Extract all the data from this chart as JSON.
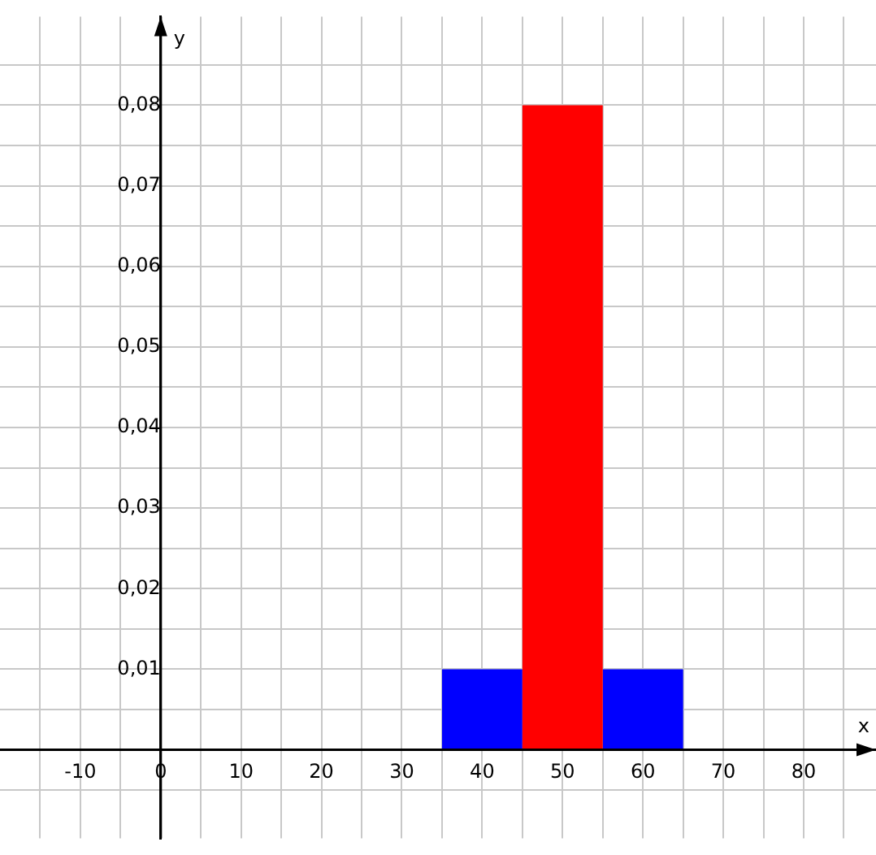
{
  "chart_data": {
    "type": "histogram",
    "xlabel": "x",
    "ylabel": "y",
    "bins": [
      35,
      45,
      55,
      65
    ],
    "series": [
      {
        "color": "#0000ff",
        "values": [
          0.01,
          null,
          0.01
        ]
      },
      {
        "color": "#ff0000",
        "values": [
          null,
          0.08,
          null
        ]
      }
    ],
    "xlim": [
      -20,
      89
    ],
    "ylim": [
      -0.011,
      0.091
    ],
    "xticks": [
      {
        "value": -15,
        "label": null
      },
      {
        "value": -10,
        "label": "-10"
      },
      {
        "value": -5,
        "label": null
      },
      {
        "value": 0,
        "label": "0"
      },
      {
        "value": 5,
        "label": null
      },
      10,
      {
        "value": 15,
        "label": null
      },
      20,
      {
        "value": 25,
        "label": null
      },
      30,
      {
        "value": 35,
        "label": null
      },
      40,
      {
        "value": 45,
        "label": null
      },
      50,
      {
        "value": 55,
        "label": null
      },
      60,
      {
        "value": 65,
        "label": null
      },
      70,
      {
        "value": 75,
        "label": null
      },
      80,
      {
        "value": 85,
        "label": null
      }
    ],
    "yticks": [
      {
        "value": -0.005,
        "label": null
      },
      {
        "value": 0.005,
        "label": null
      },
      {
        "value": 0.01,
        "label": "0,01"
      },
      {
        "value": 0.015,
        "label": null
      },
      {
        "value": 0.02,
        "label": "0,02"
      },
      {
        "value": 0.025,
        "label": null
      },
      {
        "value": 0.03,
        "label": "0,03"
      },
      {
        "value": 0.035,
        "label": null
      },
      {
        "value": 0.04,
        "label": "0,04"
      },
      {
        "value": 0.045,
        "label": null
      },
      {
        "value": 0.05,
        "label": "0,05"
      },
      {
        "value": 0.055,
        "label": null
      },
      {
        "value": 0.06,
        "label": "0,06"
      },
      {
        "value": 0.065,
        "label": null
      },
      {
        "value": 0.07,
        "label": "0,07"
      },
      {
        "value": 0.075,
        "label": null
      },
      {
        "value": 0.08,
        "label": "0,08"
      },
      {
        "value": 0.085,
        "label": null
      }
    ],
    "grid": true
  }
}
